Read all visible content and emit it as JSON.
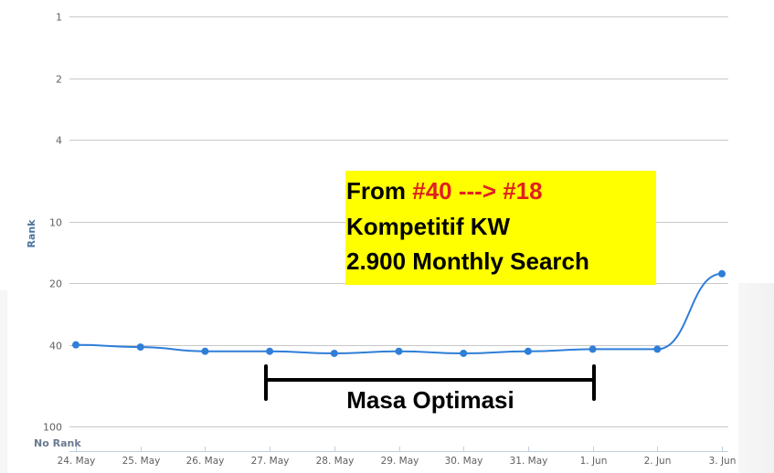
{
  "chart_data": {
    "type": "line",
    "title": "",
    "xlabel": "",
    "ylabel": "Rank",
    "y_scale": "log",
    "y_reversed": true,
    "ylim": [
      1,
      100
    ],
    "y_ticks": [
      "1",
      "2",
      "4",
      "10",
      "20",
      "40",
      "100"
    ],
    "y_bottom_label": "No Rank",
    "grid": true,
    "legend": null,
    "categories": [
      "24. May",
      "25. May",
      "26. May",
      "27. May",
      "28. May",
      "29. May",
      "30. May",
      "31. May",
      "1. Jun",
      "2. Jun",
      "3. Jun"
    ],
    "series": [
      {
        "name": "Rank",
        "color": "#2f7ed8",
        "values": [
          40,
          41,
          43,
          43,
          44,
          43,
          44,
          43,
          42,
          42,
          18
        ]
      }
    ],
    "annotations": [
      {
        "type": "text-box",
        "background": "#ffff00",
        "lines": [
          {
            "prefix": "From ",
            "highlight": "#40 ---> #18",
            "highlight_color": "#e02020"
          },
          {
            "text": "Kompetitif KW"
          },
          {
            "text": "2.900 Monthly Search"
          }
        ]
      },
      {
        "type": "bracket",
        "from": "27. May",
        "to": "1. Jun",
        "label": "Masa Optimasi"
      }
    ]
  },
  "annotation": {
    "line1_prefix": "From ",
    "line1_highlight": "#40 ---> #18",
    "line2": "Kompetitif KW",
    "line3": "2.900 Monthly Search",
    "bracket_label": "Masa Optimasi"
  },
  "axis": {
    "y_title": "Rank",
    "no_rank": "No Rank"
  }
}
